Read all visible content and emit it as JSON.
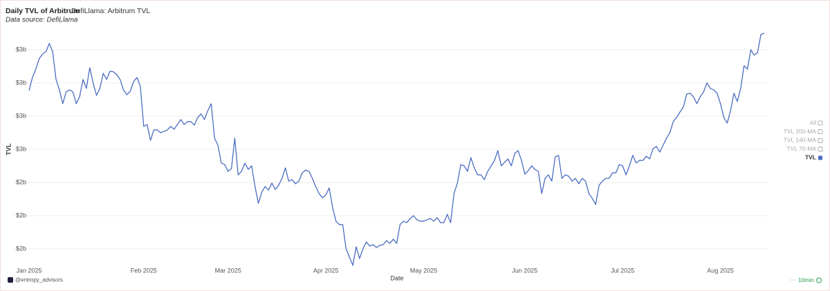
{
  "chart_data": {
    "type": "line",
    "title": "Daily TVL of Arbitrum",
    "subtitle": "DefiLlama: Arbitrum TVL",
    "source": "Data source: DefiLlama",
    "y_label": "TVL",
    "x_label": "Date",
    "legend_toggles": [
      "All",
      "TVL 200-MA",
      "TVL 140-MA",
      "TVL 70-MA"
    ],
    "watermark": "@entropy_advisors",
    "refresh": "10min",
    "grid": true,
    "legend": "right",
    "ylim": [
      1.9,
      3.3
    ],
    "yticks": [
      {
        "value": 2.0,
        "label": "$2b"
      },
      {
        "value": 2.2,
        "label": "$2b"
      },
      {
        "value": 2.4,
        "label": "$2b"
      },
      {
        "value": 2.6,
        "label": "$3b"
      },
      {
        "value": 2.8,
        "label": "$3b"
      },
      {
        "value": 3.0,
        "label": "$3b"
      },
      {
        "value": 3.2,
        "label": "$3b"
      }
    ],
    "categories": [
      "Jan 2025",
      null,
      null,
      null,
      null,
      null,
      null,
      null,
      null,
      null,
      null,
      null,
      null,
      null,
      null,
      null,
      null,
      null,
      null,
      null,
      null,
      null,
      null,
      null,
      null,
      null,
      null,
      null,
      null,
      null,
      null,
      null,
      null,
      null,
      "Feb 2025",
      null,
      null,
      null,
      null,
      null,
      null,
      null,
      null,
      null,
      null,
      null,
      null,
      null,
      null,
      null,
      null,
      null,
      null,
      null,
      null,
      null,
      null,
      null,
      null,
      "Mar 2025",
      null,
      null,
      null,
      null,
      null,
      null,
      null,
      null,
      null,
      null,
      null,
      null,
      null,
      null,
      null,
      null,
      null,
      null,
      null,
      null,
      null,
      null,
      null,
      null,
      null,
      null,
      null,
      null,
      "Apr 2025",
      null,
      null,
      null,
      null,
      null,
      null,
      null,
      null,
      null,
      null,
      null,
      null,
      null,
      null,
      null,
      null,
      null,
      null,
      null,
      null,
      null,
      null,
      null,
      null,
      null,
      null,
      null,
      null,
      "May 2025",
      null,
      null,
      null,
      null,
      null,
      null,
      null,
      null,
      null,
      null,
      null,
      null,
      null,
      null,
      null,
      null,
      null,
      null,
      null,
      null,
      null,
      null,
      null,
      null,
      null,
      null,
      null,
      null,
      null,
      "Jun 2025",
      null,
      null,
      null,
      null,
      null,
      null,
      null,
      null,
      null,
      null,
      null,
      null,
      null,
      null,
      null,
      null,
      null,
      null,
      null,
      null,
      null,
      null,
      null,
      null,
      null,
      null,
      null,
      null,
      "Jul 2025",
      null,
      null,
      null,
      null,
      null,
      null,
      null,
      null,
      null,
      null,
      null,
      null,
      null,
      null,
      null,
      null,
      null,
      null,
      null,
      null,
      null,
      null,
      null,
      null,
      null,
      null,
      null,
      null,
      "Aug 2025",
      null,
      null,
      null,
      null,
      null,
      null,
      null,
      null,
      null,
      null,
      null,
      null,
      null
    ],
    "series": [
      {
        "name": "TVL",
        "color": "#4a6cc0",
        "values": [
          2.954,
          3.033,
          3.083,
          3.146,
          3.175,
          3.188,
          3.238,
          3.188,
          3.021,
          2.958,
          2.875,
          2.946,
          2.958,
          2.946,
          2.875,
          2.917,
          3.021,
          2.967,
          3.092,
          3.0,
          2.925,
          2.967,
          3.058,
          3.021,
          3.071,
          3.067,
          3.05,
          3.021,
          2.958,
          2.929,
          2.95,
          3.008,
          3.033,
          2.979,
          2.738,
          2.75,
          2.654,
          2.717,
          2.717,
          2.7,
          2.708,
          2.717,
          2.738,
          2.721,
          2.75,
          2.779,
          2.75,
          2.767,
          2.767,
          2.746,
          2.792,
          2.813,
          2.779,
          2.833,
          2.875,
          2.667,
          2.625,
          2.517,
          2.508,
          2.467,
          2.483,
          2.667,
          2.446,
          2.467,
          2.517,
          2.479,
          2.5,
          2.375,
          2.275,
          2.342,
          2.375,
          2.354,
          2.396,
          2.358,
          2.383,
          2.425,
          2.488,
          2.408,
          2.417,
          2.392,
          2.408,
          2.458,
          2.475,
          2.467,
          2.425,
          2.375,
          2.333,
          2.308,
          2.325,
          2.367,
          2.25,
          2.167,
          2.146,
          2.146,
          2.0,
          1.95,
          1.9,
          2.013,
          1.942,
          2.0,
          2.042,
          2.017,
          2.025,
          2.008,
          2.021,
          2.025,
          2.05,
          2.033,
          2.058,
          2.033,
          2.146,
          2.167,
          2.158,
          2.183,
          2.2,
          2.175,
          2.167,
          2.167,
          2.175,
          2.183,
          2.167,
          2.188,
          2.158,
          2.158,
          2.208,
          2.158,
          2.333,
          2.396,
          2.508,
          2.5,
          2.467,
          2.55,
          2.488,
          2.446,
          2.446,
          2.417,
          2.467,
          2.5,
          2.533,
          2.592,
          2.5,
          2.521,
          2.542,
          2.5,
          2.575,
          2.592,
          2.533,
          2.45,
          2.471,
          2.5,
          2.479,
          2.467,
          2.333,
          2.425,
          2.446,
          2.408,
          2.554,
          2.563,
          2.425,
          2.446,
          2.438,
          2.408,
          2.425,
          2.392,
          2.425,
          2.408,
          2.333,
          2.304,
          2.267,
          2.383,
          2.408,
          2.425,
          2.425,
          2.458,
          2.458,
          2.508,
          2.5,
          2.446,
          2.5,
          2.563,
          2.517,
          2.533,
          2.533,
          2.558,
          2.542,
          2.604,
          2.617,
          2.583,
          2.625,
          2.667,
          2.7,
          2.767,
          2.792,
          2.825,
          2.854,
          2.933,
          2.938,
          2.917,
          2.875,
          2.917,
          2.946,
          3.0,
          2.967,
          2.958,
          2.938,
          2.875,
          2.792,
          2.758,
          2.833,
          2.938,
          2.888,
          2.967,
          3.104,
          3.083,
          3.2,
          3.167,
          3.183,
          3.292,
          3.3
        ]
      }
    ]
  }
}
